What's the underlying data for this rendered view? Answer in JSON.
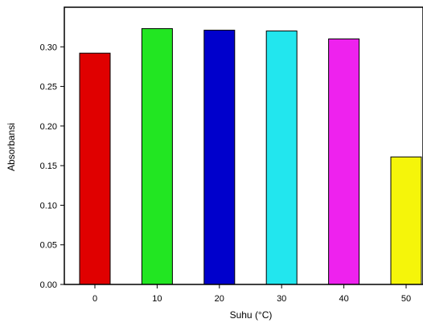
{
  "chart_data": {
    "type": "bar",
    "categories": [
      "0",
      "10",
      "20",
      "30",
      "40",
      "50"
    ],
    "values": [
      0.292,
      0.323,
      0.321,
      0.32,
      0.31,
      0.161
    ],
    "colors": [
      "#e00000",
      "#22e622",
      "#0000cc",
      "#22e6ee",
      "#ee22ee",
      "#f5f50a"
    ],
    "xlabel": "Suhu (°C)",
    "ylabel": "Absorbansi",
    "ylim": [
      0,
      0.35
    ],
    "yticks": [
      "0.00",
      "0.05",
      "0.10",
      "0.15",
      "0.20",
      "0.25",
      "0.30"
    ],
    "ytick_values": [
      0,
      0.05,
      0.1,
      0.15,
      0.2,
      0.25,
      0.3
    ],
    "grid": false
  }
}
